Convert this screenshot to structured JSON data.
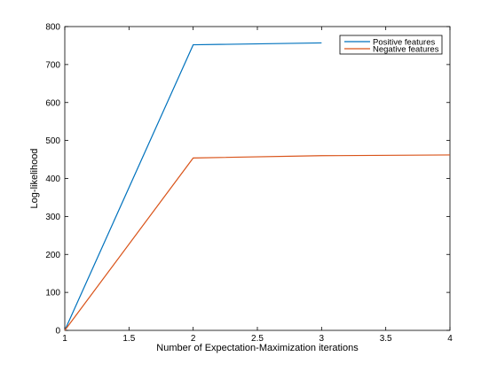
{
  "chart_data": {
    "type": "line",
    "title": "",
    "xlabel": "Number of Expectation-Maximization iterations",
    "ylabel": "Log-likelihood",
    "xlim": [
      1,
      4
    ],
    "ylim": [
      0,
      800
    ],
    "xticks": [
      1,
      1.5,
      2,
      2.5,
      3,
      3.5,
      4
    ],
    "xtick_labels": [
      "1",
      "1.5",
      "2",
      "2.5",
      "3",
      "3.5",
      "4"
    ],
    "yticks": [
      0,
      100,
      200,
      300,
      400,
      500,
      600,
      700,
      800
    ],
    "ytick_labels": [
      "0",
      "100",
      "200",
      "300",
      "400",
      "500",
      "600",
      "700",
      "800"
    ],
    "grid": false,
    "legend_position": "top-right",
    "series": [
      {
        "name": "Positive features",
        "color": "#0072bd",
        "x": [
          1,
          2,
          3
        ],
        "y": [
          0,
          752,
          757
        ]
      },
      {
        "name": "Negative features",
        "color": "#d95319",
        "x": [
          1,
          2,
          3,
          4
        ],
        "y": [
          0,
          454,
          460,
          462
        ]
      }
    ]
  }
}
